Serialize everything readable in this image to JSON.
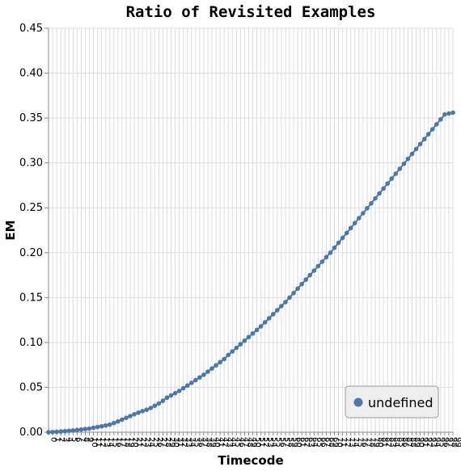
{
  "chart_data": {
    "type": "line",
    "title": "Ratio of Revisited Examples",
    "xlabel": "Timecode",
    "ylabel": "EM",
    "ylim": [
      0,
      0.45
    ],
    "yticks": [
      "0.00",
      "0.05",
      "0.10",
      "0.15",
      "0.20",
      "0.25",
      "0.30",
      "0.35",
      "0.40",
      "0.45"
    ],
    "grid": true,
    "legend_position": "bottom-right",
    "x": [
      0,
      1,
      2,
      3,
      4,
      5,
      6,
      7,
      8,
      9,
      10,
      11,
      12,
      13,
      14,
      15,
      16,
      17,
      18,
      19,
      20,
      21,
      22,
      23,
      24,
      25,
      26,
      27,
      28,
      29,
      30,
      31,
      32,
      33,
      34,
      35,
      36,
      37,
      38,
      39,
      40,
      41,
      42,
      43,
      44,
      45,
      46,
      47,
      48,
      49,
      50,
      51,
      52,
      53,
      54,
      55,
      56,
      57,
      58,
      59,
      60,
      61,
      62,
      63,
      64,
      65,
      66,
      67,
      68,
      69,
      70,
      71,
      72,
      73,
      74,
      75,
      76,
      77,
      78,
      79,
      80,
      81,
      82,
      83,
      84,
      85,
      86,
      87,
      88,
      89,
      90,
      91,
      92,
      93,
      94,
      95,
      96,
      97,
      98,
      99
    ],
    "series": [
      {
        "name": "undefined",
        "color": "#4c78a8",
        "values": [
          0,
          0.0002,
          0.0005,
          0.0008,
          0.0012,
          0.0016,
          0.002,
          0.0025,
          0.003,
          0.0035,
          0.004,
          0.005,
          0.0058,
          0.0066,
          0.0075,
          0.0085,
          0.0102,
          0.012,
          0.014,
          0.016,
          0.018,
          0.02,
          0.0218,
          0.0235,
          0.025,
          0.027,
          0.0295,
          0.032,
          0.035,
          0.0385,
          0.041,
          0.0435,
          0.046,
          0.049,
          0.052,
          0.055,
          0.058,
          0.061,
          0.064,
          0.0675,
          0.071,
          0.0745,
          0.078,
          0.0815,
          0.086,
          0.09,
          0.094,
          0.098,
          0.102,
          0.106,
          0.11,
          0.114,
          0.118,
          0.1225,
          0.127,
          0.1315,
          0.136,
          0.1405,
          0.145,
          0.15,
          0.155,
          0.16,
          0.165,
          0.17,
          0.175,
          0.18,
          0.185,
          0.19,
          0.195,
          0.2,
          0.2055,
          0.211,
          0.2165,
          0.222,
          0.2275,
          0.233,
          0.2385,
          0.244,
          0.2495,
          0.255,
          0.2605,
          0.266,
          0.2715,
          0.277,
          0.2825,
          0.288,
          0.2935,
          0.299,
          0.3045,
          0.31,
          0.3155,
          0.321,
          0.3265,
          0.332,
          0.3375,
          0.343,
          0.3485,
          0.354,
          0.355,
          0.356
        ]
      }
    ]
  }
}
